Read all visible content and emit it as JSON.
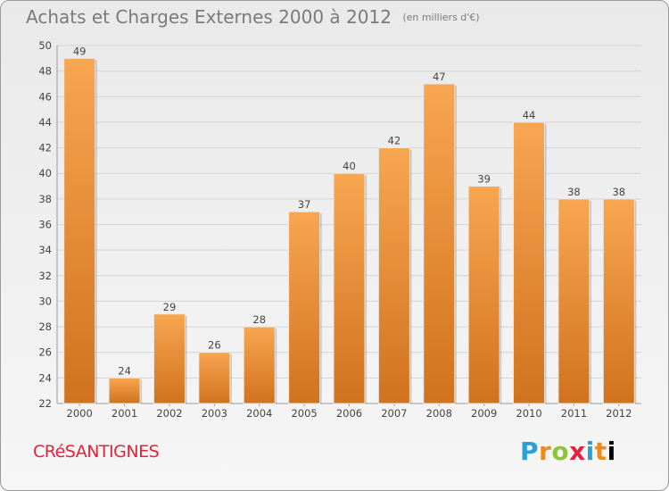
{
  "header": {
    "title": "Achats et Charges Externes 2000 à 2012",
    "unit": "(en milliers d'€)"
  },
  "footer": {
    "commune": "CRéSANTIGNES",
    "logo_text": "Proxiti"
  },
  "colors": {
    "bar_light": "#f8a650",
    "bar_dark": "#d0721e",
    "axis_text": "#444444",
    "commune": "#e0243e"
  },
  "chart_data": {
    "type": "bar",
    "title": "Achats et Charges Externes 2000 à 2012",
    "xlabel": "",
    "ylabel": "",
    "categories": [
      "2000",
      "2001",
      "2002",
      "2003",
      "2004",
      "2005",
      "2006",
      "2007",
      "2008",
      "2009",
      "2010",
      "2011",
      "2012"
    ],
    "values": [
      49,
      24,
      29,
      26,
      28,
      37,
      40,
      42,
      47,
      39,
      44,
      38,
      38
    ],
    "ylim": [
      22,
      50
    ],
    "yticks": [
      22,
      24,
      26,
      28,
      30,
      32,
      34,
      36,
      38,
      40,
      42,
      44,
      46,
      48,
      50
    ],
    "grid": true,
    "legend": "none"
  }
}
